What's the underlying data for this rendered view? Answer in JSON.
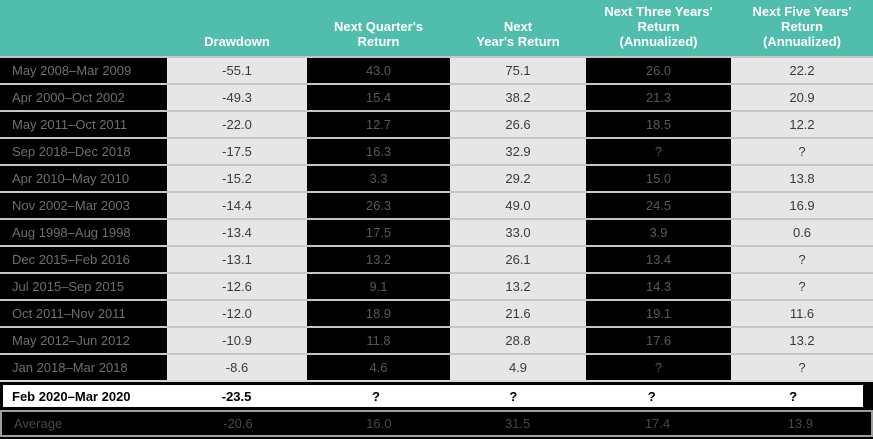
{
  "chart_data": {
    "type": "table",
    "title": "",
    "legend": "none",
    "grid": "row-separators",
    "unknown_marker": "?",
    "colors": {
      "header_bg": "#50BDAD",
      "header_text": "#FFFFFF",
      "dark_cell_bg": "#000000",
      "dark_cell_text": "#585858",
      "light_cell_bg": "#E6E6E6",
      "light_cell_text": "#3B3B3B",
      "highlight_bg": "#FFFFFF",
      "highlight_border": "#000000",
      "footer_border": "#9E9E9E",
      "separator": "#C6C6C6"
    },
    "columns": [
      {
        "id": "period",
        "label": ""
      },
      {
        "id": "drawdown",
        "label": "Drawdown"
      },
      {
        "id": "next-quarter-return",
        "label": "Next Quarter's\nReturn"
      },
      {
        "id": "next-year-return",
        "label": "Next\nYear's Return"
      },
      {
        "id": "next-three-years-return",
        "label": "Next Three Years' Return\n(Annualized)"
      },
      {
        "id": "next-five-years-return",
        "label": "Next Five Years' Return\n(Annualized)"
      }
    ],
    "rows": [
      [
        "May 2008–Mar 2009",
        "-55.1",
        "43.0",
        "75.1",
        "26.0",
        "22.2"
      ],
      [
        "Apr 2000–Oct 2002",
        "-49.3",
        "15.4",
        "38.2",
        "21.3",
        "20.9"
      ],
      [
        "May 2011–Oct 2011",
        "-22.0",
        "12.7",
        "26.6",
        "18.5",
        "12.2"
      ],
      [
        "Sep 2018–Dec 2018",
        "-17.5",
        "16.3",
        "32.9",
        "?",
        "?"
      ],
      [
        "Apr 2010–May 2010",
        "-15.2",
        "3.3",
        "29.2",
        "15.0",
        "13.8"
      ],
      [
        "Nov 2002–Mar 2003",
        "-14.4",
        "26.3",
        "49.0",
        "24.5",
        "16.9"
      ],
      [
        "Aug 1998–Aug 1998",
        "-13.4",
        "17.5",
        "33.0",
        "3.9",
        "0.6"
      ],
      [
        "Dec 2015–Feb 2016",
        "-13.1",
        "13.2",
        "26.1",
        "13.4",
        "?"
      ],
      [
        "Jul 2015–Sep 2015",
        "-12.6",
        "9.1",
        "13.2",
        "14.3",
        "?"
      ],
      [
        "Oct 2011–Nov 2011",
        "-12.0",
        "18.9",
        "21.6",
        "19.1",
        "11.6"
      ],
      [
        "May 2012–Jun 2012",
        "-10.9",
        "11.8",
        "28.8",
        "17.6",
        "13.2"
      ],
      [
        "Jan 2018–Mar 2018",
        "-8.6",
        "4.6",
        "4.9",
        "?",
        "?"
      ]
    ],
    "highlight_row": [
      "Feb 2020–Mar 2020",
      "-23.5",
      "?",
      "?",
      "?",
      "?"
    ],
    "footer_row": [
      "Average",
      "-20.6",
      "16.0",
      "31.5",
      "17.4",
      "13.9"
    ]
  }
}
